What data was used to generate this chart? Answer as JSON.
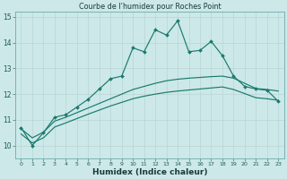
{
  "title": "Courbe de l’humidex pour Roches Point",
  "xlabel": "Humidex (Indice chaleur)",
  "bg_color": "#cce8e8",
  "grid_color": "#afd4d4",
  "line_color": "#1a7a6e",
  "xlim": [
    -0.5,
    23.5
  ],
  "ylim": [
    9.5,
    15.2
  ],
  "yticks": [
    10,
    11,
    12,
    13,
    14,
    15
  ],
  "xticks": [
    0,
    1,
    2,
    3,
    4,
    5,
    6,
    7,
    8,
    9,
    10,
    11,
    12,
    13,
    14,
    15,
    16,
    17,
    18,
    19,
    20,
    21,
    22,
    23
  ],
  "x": [
    0,
    1,
    2,
    3,
    4,
    5,
    6,
    7,
    8,
    9,
    10,
    11,
    12,
    13,
    14,
    15,
    16,
    17,
    18,
    19,
    20,
    21,
    22,
    23
  ],
  "spiky_y": [
    10.7,
    10.0,
    10.5,
    11.1,
    11.2,
    11.5,
    11.8,
    12.2,
    12.6,
    12.7,
    13.8,
    13.65,
    14.5,
    14.3,
    14.85,
    13.65,
    13.7,
    14.05,
    13.5,
    12.7,
    12.3,
    12.2,
    12.15,
    11.72
  ],
  "smooth_hi_y": [
    10.65,
    10.3,
    10.52,
    10.95,
    11.1,
    11.28,
    11.46,
    11.64,
    11.82,
    12.0,
    12.18,
    12.3,
    12.42,
    12.52,
    12.58,
    12.62,
    12.65,
    12.68,
    12.7,
    12.62,
    12.42,
    12.22,
    12.18,
    12.12
  ],
  "smooth_lo_y": [
    10.45,
    10.1,
    10.3,
    10.72,
    10.88,
    11.05,
    11.22,
    11.38,
    11.54,
    11.68,
    11.82,
    11.92,
    12.0,
    12.07,
    12.12,
    12.16,
    12.2,
    12.24,
    12.28,
    12.18,
    12.02,
    11.86,
    11.82,
    11.76
  ]
}
